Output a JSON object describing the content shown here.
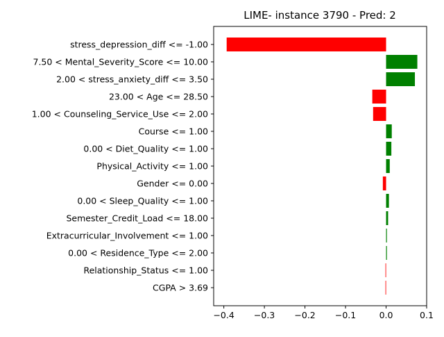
{
  "chart_data": {
    "type": "bar",
    "orientation": "horizontal",
    "title": "LIME- instance 3790 - Pred: 2",
    "xlabel": "",
    "ylabel": "",
    "xlim": [
      -0.425,
      0.1
    ],
    "xticks": [
      -0.4,
      -0.3,
      -0.2,
      -0.1,
      0.0,
      0.1
    ],
    "xtick_labels": [
      "−0.4",
      "−0.3",
      "−0.2",
      "−0.1",
      "0.0",
      "0.1"
    ],
    "grid": false,
    "legend": "none",
    "positive_color": "#008000",
    "negative_color": "#ff0000",
    "categories": [
      "stress_depression_diff <= -1.00",
      "7.50 < Mental_Severity_Score <= 10.00",
      "2.00 < stress_anxiety_diff <= 3.50",
      "23.00 < Age <= 28.50",
      "1.00 < Counseling_Service_Use <= 2.00",
      "Course <= 1.00",
      "0.00 < Diet_Quality <= 1.00",
      "Physical_Activity <= 1.00",
      "Gender <= 0.00",
      "0.00 < Sleep_Quality <= 1.00",
      "Semester_Credit_Load <= 18.00",
      "Extracurricular_Involvement <= 1.00",
      "0.00 < Residence_Type <= 2.00",
      "Relationship_Status <= 1.00",
      "CGPA > 3.69"
    ],
    "values": [
      -0.393,
      0.077,
      0.071,
      -0.034,
      -0.032,
      0.014,
      0.013,
      0.009,
      -0.008,
      0.007,
      0.005,
      0.002,
      0.002,
      -0.0015,
      -0.0015
    ]
  }
}
